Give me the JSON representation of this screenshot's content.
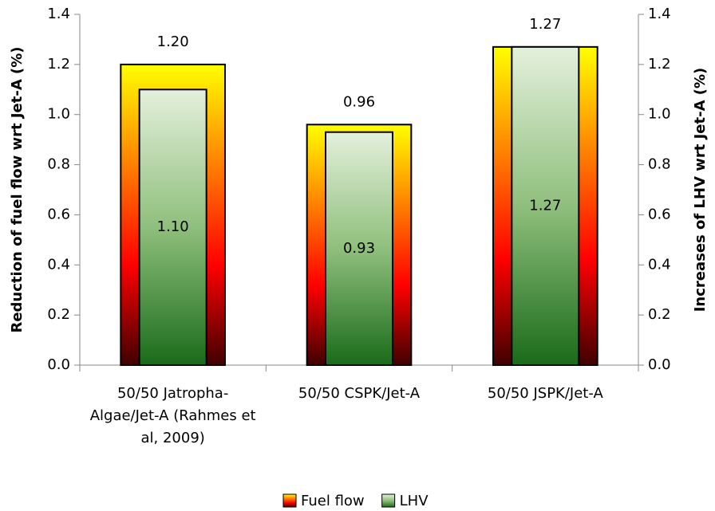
{
  "chart_data": {
    "type": "bar",
    "categories": [
      "50/50 Jatropha-Algae/Jet-A (Rahmes et al, 2009)",
      "50/50 CSPK/Jet-A",
      "50/50 JSPK/Jet-A"
    ],
    "series": [
      {
        "name": "Fuel flow",
        "color": [
          "#ffff00",
          "#ff8000",
          "#ff0000",
          "#400000"
        ],
        "values": [
          1.2,
          0.96,
          1.27
        ],
        "value_labels": [
          "1.20",
          "0.96",
          "1.27"
        ]
      },
      {
        "name": "LHV",
        "color": [
          "#e4f0dc",
          "#8fbf7c",
          "#1a6b1a"
        ],
        "values": [
          1.1,
          0.93,
          1.27
        ],
        "value_labels": [
          "1.10",
          "0.93",
          "1.27"
        ],
        "axis": "y2"
      }
    ],
    "ylabel": "Reduction of fuel flow wrt Jet-A (%)",
    "y2label": "Increases of LHV wrt Jet-A (%)",
    "ylim": [
      0,
      1.4
    ],
    "yticks": [
      {
        "value": 0,
        "label": "0.0"
      },
      0.2,
      0.4,
      0.6,
      0.8,
      {
        "value": 1,
        "label": "1.0"
      },
      1.2,
      1.4
    ],
    "y2lim": [
      0,
      1.4
    ],
    "y2ticks": [
      {
        "value": 0,
        "label": "0.0"
      },
      0.2,
      0.4,
      0.6,
      0.8,
      {
        "value": 1,
        "label": "1.0"
      },
      1.2,
      1.4
    ],
    "legend": "bottom"
  }
}
